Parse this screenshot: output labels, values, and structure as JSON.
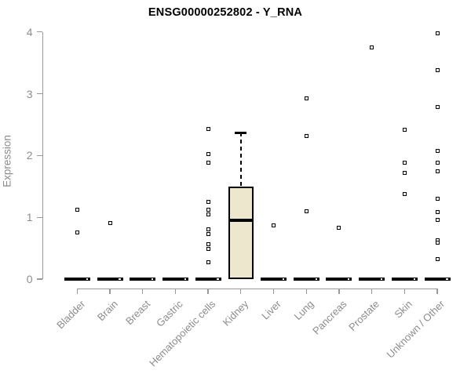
{
  "chart_data": {
    "type": "boxplot",
    "title": "ENSG00000252802 - Y_RNA",
    "xlabel": "",
    "ylabel": "Expression",
    "ylim": [
      0,
      4
    ],
    "yticks": [
      0,
      1,
      2,
      3,
      4
    ],
    "grid": false,
    "legend": false,
    "categories": [
      "Bladder",
      "Brain",
      "Breast",
      "Gastric",
      "Hematopoietic cells",
      "Kidney",
      "Liver",
      "Lung",
      "Pancreas",
      "Prostate",
      "Skin",
      "Unknown / Other"
    ],
    "series": [
      {
        "category": "Bladder",
        "q1": 0,
        "median": 0,
        "q3": 0,
        "whisker_low": 0,
        "whisker_high": 0,
        "outliers": [
          1.12,
          0.75
        ]
      },
      {
        "category": "Brain",
        "q1": 0,
        "median": 0,
        "q3": 0,
        "whisker_low": 0,
        "whisker_high": 0,
        "outliers": [
          0.91
        ]
      },
      {
        "category": "Breast",
        "q1": 0,
        "median": 0,
        "q3": 0,
        "whisker_low": 0,
        "whisker_high": 0,
        "outliers": []
      },
      {
        "category": "Gastric",
        "q1": 0,
        "median": 0,
        "q3": 0,
        "whisker_low": 0,
        "whisker_high": 0,
        "outliers": []
      },
      {
        "category": "Hematopoietic cells",
        "q1": 0,
        "median": 0,
        "q3": 0,
        "whisker_low": 0,
        "whisker_high": 0,
        "outliers": [
          2.43,
          2.03,
          1.89,
          1.25,
          1.12,
          1.05,
          0.8,
          0.73,
          0.57,
          0.49,
          0.27
        ]
      },
      {
        "category": "Kidney",
        "q1": 0,
        "median": 0.95,
        "q3": 1.5,
        "whisker_low": 0,
        "whisker_high": 2.37,
        "outliers": []
      },
      {
        "category": "Liver",
        "q1": 0,
        "median": 0,
        "q3": 0,
        "whisker_low": 0,
        "whisker_high": 0,
        "outliers": [
          0.87
        ]
      },
      {
        "category": "Lung",
        "q1": 0,
        "median": 0,
        "q3": 0,
        "whisker_low": 0,
        "whisker_high": 0,
        "outliers": [
          2.92,
          2.31,
          1.1
        ]
      },
      {
        "category": "Pancreas",
        "q1": 0,
        "median": 0,
        "q3": 0,
        "whisker_low": 0,
        "whisker_high": 0,
        "outliers": [
          0.83
        ]
      },
      {
        "category": "Prostate",
        "q1": 0,
        "median": 0,
        "q3": 0,
        "whisker_low": 0,
        "whisker_high": 0,
        "outliers": [
          3.75
        ]
      },
      {
        "category": "Skin",
        "q1": 0,
        "median": 0,
        "q3": 0,
        "whisker_low": 0,
        "whisker_high": 0,
        "outliers": [
          2.42,
          1.88,
          1.72,
          1.38
        ]
      },
      {
        "category": "Unknown / Other",
        "q1": 0,
        "median": 0,
        "q3": 0,
        "whisker_low": 0,
        "whisker_high": 0,
        "outliers": [
          3.98,
          3.38,
          2.78,
          2.08,
          1.88,
          1.74,
          1.3,
          1.08,
          0.96,
          0.63,
          0.59,
          0.32
        ]
      }
    ],
    "colors": {
      "box_fill": "#ece7cd",
      "box_border": "#000000",
      "median": "#000000",
      "axis_line": "#999999",
      "axis_text": "#8c8c8c",
      "title_text": "#000000",
      "outlier_fill": "#ffffff",
      "outlier_border": "#000000"
    }
  }
}
